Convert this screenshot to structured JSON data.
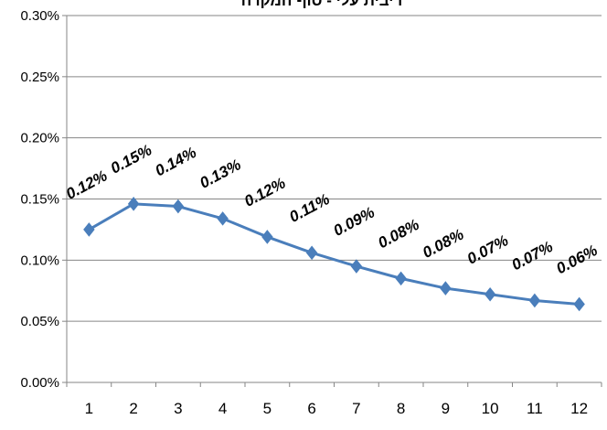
{
  "chart_data": {
    "type": "line",
    "title": "ריבית עלי - סוף המקרה",
    "xlabel": "",
    "ylabel": "",
    "categories": [
      "1",
      "2",
      "3",
      "4",
      "5",
      "6",
      "7",
      "8",
      "9",
      "10",
      "11",
      "12"
    ],
    "series": [
      {
        "values": [
          0.125,
          0.146,
          0.144,
          0.134,
          0.119,
          0.106,
          0.095,
          0.085,
          0.077,
          0.072,
          0.067,
          0.064
        ],
        "data_labels": [
          "0.12%",
          "0.15%",
          "0.14%",
          "0.13%",
          "0.12%",
          "0.11%",
          "0.09%",
          "0.08%",
          "0.08%",
          "0.07%",
          "0.07%",
          "0.06%"
        ],
        "color": "#4a7ebb",
        "marker": "diamond"
      }
    ],
    "ylim": [
      0,
      0.3
    ],
    "yticks": [
      "0.00%",
      "0.05%",
      "0.10%",
      "0.15%",
      "0.20%",
      "0.25%",
      "0.30%"
    ],
    "grid": true,
    "legend": "none",
    "colors": {
      "line": "#4a7ebb",
      "grid": "#868686",
      "axis": "#868686"
    }
  }
}
